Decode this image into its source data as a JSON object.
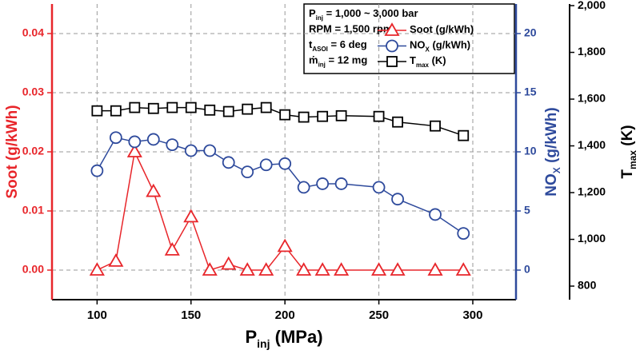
{
  "chart_data": {
    "type": "line",
    "x": [
      100,
      110,
      120,
      130,
      140,
      150,
      160,
      170,
      180,
      190,
      200,
      210,
      220,
      230,
      250,
      260,
      280,
      295
    ],
    "xlim": [
      76,
      323
    ],
    "xticks": [
      100,
      150,
      200,
      250,
      300
    ],
    "x_label": [
      "P",
      "inj",
      " (MPa)"
    ],
    "ylim": [
      -0.005,
      0.045
    ],
    "yticks": [
      {
        "value": 0,
        "label": "0.00"
      },
      {
        "value": 0.01,
        "label": "0.01"
      },
      {
        "value": 0.02,
        "label": "0.02"
      },
      {
        "value": 0.03,
        "label": "0.03"
      },
      {
        "value": 0.04,
        "label": "0.04"
      }
    ],
    "y_label": [
      "Soot (g/kWh)"
    ],
    "y2lim": [
      -2.5,
      22.5
    ],
    "y2ticks": [
      0,
      5,
      10,
      15,
      20
    ],
    "y2_label": [
      "NO",
      "X",
      " (g/kWh)"
    ],
    "y3lim": [
      742,
      2007
    ],
    "y3ticks": [
      800,
      {
        "value": 1000,
        "label": "1,000"
      },
      {
        "value": 1200,
        "label": "1,200"
      },
      {
        "value": 1400,
        "label": "1,400"
      },
      {
        "value": 1600,
        "label": "1,600"
      },
      {
        "value": 1800,
        "label": "1,800"
      },
      {
        "value": 2000,
        "label": "2,000"
      }
    ],
    "y3_label": [
      "T",
      "max",
      " (K)"
    ],
    "grid": true,
    "series": [
      {
        "name": [
          "Soot (g/kWh)"
        ],
        "color": "#e8262b",
        "marker": "triangle",
        "axis": "y",
        "values": [
          0,
          0.0015,
          0.02,
          0.0133,
          0.0034,
          0.009,
          0,
          0.001,
          0,
          0,
          0.004,
          0,
          0,
          0,
          0,
          0,
          0,
          0
        ]
      },
      {
        "name": [
          "NO",
          "X",
          " (g/kWh)"
        ],
        "color": "#2e4a9c",
        "marker": "circle",
        "axis": "y2",
        "values": [
          8.4,
          11.2,
          10.85,
          11.05,
          10.6,
          10.1,
          10.1,
          9.1,
          8.3,
          8.9,
          9.0,
          7.0,
          7.3,
          7.3,
          7.0,
          6.0,
          4.7,
          3.1
        ]
      },
      {
        "name": [
          "T",
          "max",
          " (K)"
        ],
        "color": "#000000",
        "marker": "square",
        "axis": "y3",
        "values": [
          1550,
          1550,
          1564,
          1560,
          1564,
          1564,
          1553,
          1547,
          1557,
          1564,
          1533,
          1523,
          1526,
          1529,
          1526,
          1502,
          1485,
          1444
        ]
      }
    ],
    "annotations": [
      [
        "P",
        "inj",
        " = 1,000 ~ 3,000 bar"
      ],
      [
        "RPM = 1,500 rpm"
      ],
      [
        "t",
        "ASOI",
        " = 6 deg"
      ],
      [
        "ṁ",
        "inj",
        " = 12 mg"
      ]
    ]
  }
}
